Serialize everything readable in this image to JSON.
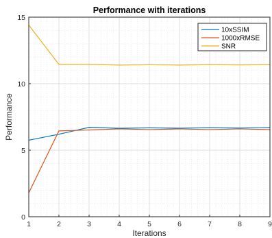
{
  "chart_data": {
    "type": "line",
    "title": "Performance with iterations",
    "xlabel": "Iterations",
    "ylabel": "Performance",
    "xlim": [
      1,
      9
    ],
    "ylim": [
      0,
      15
    ],
    "x_ticks": [
      1,
      2,
      3,
      4,
      5,
      6,
      7,
      8,
      9
    ],
    "y_ticks": [
      0,
      5,
      10,
      15
    ],
    "grid": "major and minor (dotted)",
    "legend_position": "top-right",
    "x": [
      1,
      2,
      3,
      4,
      5,
      6,
      7,
      8,
      9
    ],
    "series": [
      {
        "name": "10xSSIM",
        "color": "#0072BD",
        "values": [
          5.75,
          6.2,
          6.72,
          6.65,
          6.68,
          6.66,
          6.69,
          6.67,
          6.7
        ]
      },
      {
        "name": "1000xRMSE",
        "color": "#D95319",
        "values": [
          1.8,
          6.45,
          6.52,
          6.6,
          6.55,
          6.6,
          6.55,
          6.6,
          6.55
        ]
      },
      {
        "name": "SNR",
        "color": "#EDB120",
        "values": [
          14.4,
          11.45,
          11.45,
          11.4,
          11.42,
          11.4,
          11.43,
          11.41,
          11.43
        ]
      }
    ]
  }
}
